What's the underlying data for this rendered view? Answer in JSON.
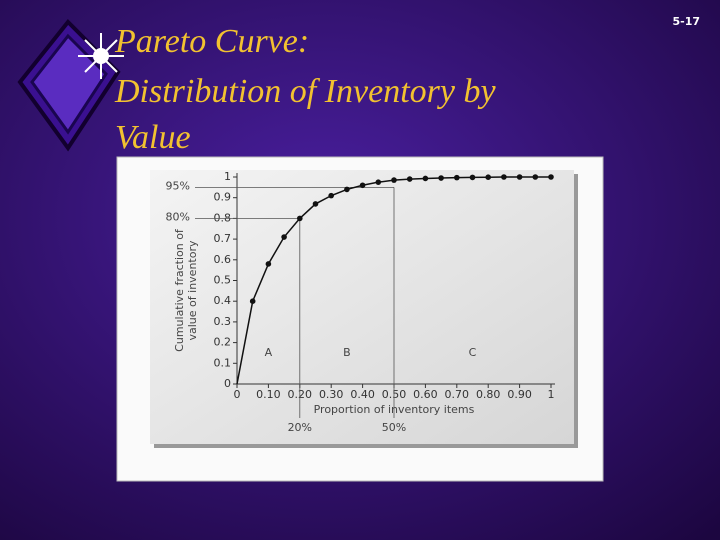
{
  "slide": {
    "title_lines": [
      "Pareto Curve:",
      "Distribution of Inventory by",
      "Value"
    ],
    "page_number": "5-17"
  },
  "chart_data": {
    "type": "line",
    "x": [
      0,
      0.05,
      0.1,
      0.15,
      0.2,
      0.25,
      0.3,
      0.35,
      0.4,
      0.45,
      0.5,
      0.55,
      0.6,
      0.65,
      0.7,
      0.75,
      0.8,
      0.85,
      0.9,
      0.95,
      1
    ],
    "values": [
      0,
      0.4,
      0.58,
      0.71,
      0.8,
      0.87,
      0.91,
      0.94,
      0.96,
      0.975,
      0.985,
      0.99,
      0.993,
      0.995,
      0.997,
      0.998,
      0.999,
      1,
      1,
      1,
      1
    ],
    "color": "#111111",
    "xlim": [
      0,
      1
    ],
    "ylim": [
      0,
      1
    ],
    "xticks": [
      0,
      {
        "value": 0.1,
        "label": "0.10"
      },
      {
        "value": 0.2,
        "label": "0.20"
      },
      {
        "value": 0.3,
        "label": "0.30"
      },
      {
        "value": 0.4,
        "label": "0.40"
      },
      {
        "value": 0.5,
        "label": "0.50"
      },
      {
        "value": 0.6,
        "label": "0.60"
      },
      {
        "value": 0.7,
        "label": "0.70"
      },
      {
        "value": 0.8,
        "label": "0.80"
      },
      {
        "value": 0.9,
        "label": "0.90"
      },
      1
    ],
    "yticks": [
      0,
      0.1,
      0.2,
      0.3,
      0.4,
      0.5,
      0.6,
      0.7,
      0.8,
      0.9,
      1
    ],
    "xlabel": "Proportion of inventory items",
    "ylabel": [
      "Cumulative fraction of",
      "value of inventory"
    ],
    "y_annotations": [
      {
        "value": 0.95,
        "label": "95%"
      },
      {
        "value": 0.8,
        "label": "80%"
      }
    ],
    "x_annotations": [
      {
        "value": 0.2,
        "label": "20%"
      },
      {
        "value": 0.5,
        "label": "50%"
      }
    ],
    "regions": [
      "A",
      "B",
      "C"
    ]
  }
}
